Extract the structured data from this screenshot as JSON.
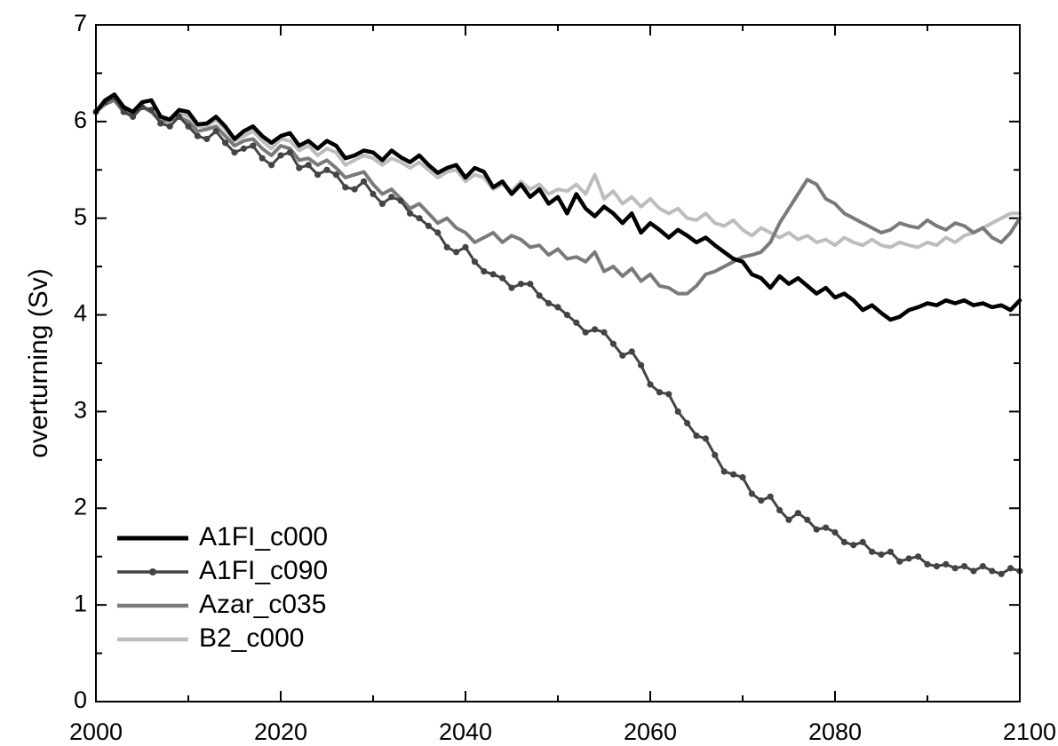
{
  "chart_data": {
    "type": "line",
    "title": "",
    "xlabel": "",
    "ylabel": "overturning (Sv)",
    "xlim": [
      2000,
      2100
    ],
    "ylim": [
      0,
      7
    ],
    "x_ticks": [
      "2000",
      "2020",
      "2040",
      "2060",
      "2080",
      "2100"
    ],
    "y_ticks": [
      "0",
      "1",
      "2",
      "3",
      "4",
      "5",
      "6",
      "7"
    ],
    "grid": false,
    "legend_position": "bottom-left",
    "x": [
      2000,
      2001,
      2002,
      2003,
      2004,
      2005,
      2006,
      2007,
      2008,
      2009,
      2010,
      2011,
      2012,
      2013,
      2014,
      2015,
      2016,
      2017,
      2018,
      2019,
      2020,
      2021,
      2022,
      2023,
      2024,
      2025,
      2026,
      2027,
      2028,
      2029,
      2030,
      2031,
      2032,
      2033,
      2034,
      2035,
      2036,
      2037,
      2038,
      2039,
      2040,
      2041,
      2042,
      2043,
      2044,
      2045,
      2046,
      2047,
      2048,
      2049,
      2050,
      2051,
      2052,
      2053,
      2054,
      2055,
      2056,
      2057,
      2058,
      2059,
      2060,
      2061,
      2062,
      2063,
      2064,
      2065,
      2066,
      2067,
      2068,
      2069,
      2070,
      2071,
      2072,
      2073,
      2074,
      2075,
      2076,
      2077,
      2078,
      2079,
      2080,
      2081,
      2082,
      2083,
      2084,
      2085,
      2086,
      2087,
      2088,
      2089,
      2090,
      2091,
      2092,
      2093,
      2094,
      2095,
      2096,
      2097,
      2098,
      2099,
      2100
    ],
    "series": [
      {
        "name": "A1FI_c000",
        "color": "#000000",
        "width": 4.5,
        "markers": false,
        "values": [
          6.1,
          6.22,
          6.28,
          6.15,
          6.1,
          6.2,
          6.22,
          6.05,
          6.02,
          6.12,
          6.1,
          5.97,
          5.98,
          6.05,
          5.95,
          5.82,
          5.9,
          5.95,
          5.85,
          5.78,
          5.85,
          5.88,
          5.75,
          5.8,
          5.72,
          5.8,
          5.75,
          5.62,
          5.65,
          5.7,
          5.68,
          5.6,
          5.7,
          5.63,
          5.58,
          5.65,
          5.55,
          5.47,
          5.52,
          5.55,
          5.42,
          5.52,
          5.48,
          5.32,
          5.38,
          5.25,
          5.35,
          5.22,
          5.3,
          5.15,
          5.22,
          5.05,
          5.25,
          5.1,
          5.02,
          5.12,
          5.05,
          4.95,
          5.05,
          4.85,
          4.95,
          4.88,
          4.8,
          4.88,
          4.82,
          4.75,
          4.8,
          4.72,
          4.65,
          4.58,
          4.55,
          4.42,
          4.38,
          4.28,
          4.4,
          4.32,
          4.38,
          4.3,
          4.22,
          4.28,
          4.18,
          4.22,
          4.15,
          4.05,
          4.1,
          4.02,
          3.95,
          3.98,
          4.05,
          4.08,
          4.12,
          4.1,
          4.15,
          4.12,
          4.15,
          4.1,
          4.12,
          4.08,
          4.1,
          4.05,
          4.15
        ]
      },
      {
        "name": "A1FI_c090",
        "color": "#444444",
        "width": 3,
        "markers": true,
        "values": [
          6.1,
          6.2,
          6.25,
          6.1,
          6.05,
          6.15,
          6.12,
          5.98,
          5.95,
          6.05,
          5.95,
          5.85,
          5.82,
          5.9,
          5.78,
          5.68,
          5.72,
          5.75,
          5.62,
          5.55,
          5.65,
          5.68,
          5.52,
          5.55,
          5.45,
          5.5,
          5.45,
          5.32,
          5.3,
          5.38,
          5.25,
          5.15,
          5.22,
          5.18,
          5.05,
          5.0,
          4.92,
          4.85,
          4.7,
          4.65,
          4.7,
          4.55,
          4.45,
          4.42,
          4.38,
          4.28,
          4.32,
          4.32,
          4.2,
          4.12,
          4.08,
          4.0,
          3.92,
          3.82,
          3.85,
          3.82,
          3.7,
          3.58,
          3.62,
          3.48,
          3.28,
          3.2,
          3.18,
          3.0,
          2.88,
          2.75,
          2.72,
          2.55,
          2.38,
          2.35,
          2.32,
          2.15,
          2.08,
          2.12,
          1.98,
          1.88,
          1.95,
          1.88,
          1.78,
          1.8,
          1.75,
          1.65,
          1.62,
          1.65,
          1.55,
          1.52,
          1.55,
          1.45,
          1.48,
          1.5,
          1.42,
          1.4,
          1.42,
          1.38,
          1.4,
          1.35,
          1.4,
          1.35,
          1.32,
          1.38,
          1.35
        ]
      },
      {
        "name": "Azar_c035",
        "color": "#7a7a7a",
        "width": 4,
        "markers": false,
        "values": [
          6.1,
          6.18,
          6.22,
          6.1,
          6.08,
          6.15,
          6.1,
          6.0,
          6.02,
          6.05,
          6.0,
          5.9,
          5.92,
          5.95,
          5.85,
          5.75,
          5.8,
          5.82,
          5.72,
          5.65,
          5.75,
          5.72,
          5.6,
          5.62,
          5.55,
          5.6,
          5.52,
          5.42,
          5.45,
          5.48,
          5.35,
          5.25,
          5.3,
          5.2,
          5.1,
          5.15,
          5.05,
          4.95,
          5.0,
          4.9,
          4.85,
          4.75,
          4.8,
          4.85,
          4.75,
          4.82,
          4.78,
          4.7,
          4.72,
          4.62,
          4.68,
          4.58,
          4.6,
          4.55,
          4.65,
          4.45,
          4.5,
          4.4,
          4.48,
          4.35,
          4.42,
          4.3,
          4.28,
          4.22,
          4.22,
          4.3,
          4.42,
          4.45,
          4.5,
          4.55,
          4.6,
          4.62,
          4.65,
          4.75,
          4.95,
          5.1,
          5.25,
          5.4,
          5.35,
          5.2,
          5.15,
          5.05,
          5.0,
          4.95,
          4.9,
          4.85,
          4.88,
          4.95,
          4.92,
          4.9,
          4.98,
          4.92,
          4.88,
          4.95,
          4.92,
          4.85,
          4.9,
          4.8,
          4.75,
          4.85,
          5.0
        ]
      },
      {
        "name": "B2_c000",
        "color": "#bdbdbd",
        "width": 4,
        "markers": false,
        "values": [
          6.1,
          6.2,
          6.25,
          6.1,
          6.05,
          6.15,
          6.12,
          6.0,
          5.98,
          6.1,
          6.05,
          5.95,
          5.95,
          6.02,
          5.92,
          5.8,
          5.85,
          5.9,
          5.8,
          5.72,
          5.82,
          5.8,
          5.7,
          5.75,
          5.65,
          5.72,
          5.68,
          5.55,
          5.6,
          5.65,
          5.62,
          5.55,
          5.62,
          5.58,
          5.52,
          5.58,
          5.5,
          5.42,
          5.48,
          5.5,
          5.38,
          5.45,
          5.42,
          5.3,
          5.35,
          5.28,
          5.38,
          5.3,
          5.35,
          5.25,
          5.3,
          5.28,
          5.35,
          5.25,
          5.45,
          5.2,
          5.28,
          5.15,
          5.22,
          5.12,
          5.2,
          5.1,
          5.05,
          5.1,
          5.0,
          4.98,
          5.05,
          4.95,
          4.92,
          4.98,
          4.88,
          4.82,
          4.9,
          4.85,
          4.8,
          4.85,
          4.78,
          4.82,
          4.75,
          4.78,
          4.72,
          4.8,
          4.75,
          4.72,
          4.78,
          4.72,
          4.7,
          4.75,
          4.72,
          4.7,
          4.75,
          4.72,
          4.8,
          4.75,
          4.82,
          4.85,
          4.9,
          4.95,
          5.0,
          5.05,
          5.05
        ]
      }
    ]
  }
}
